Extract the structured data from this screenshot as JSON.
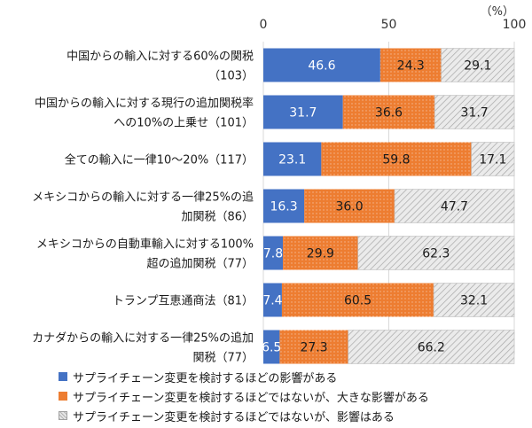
{
  "chart_data": {
    "type": "bar",
    "orientation": "horizontal",
    "stacked": true,
    "unit_label": "（%）",
    "xlim": [
      0,
      100
    ],
    "xticks": [
      "0",
      "50",
      "100"
    ],
    "categories": [
      [
        "中国からの輸入に対する60%の関税",
        "（103）"
      ],
      [
        "中国からの輸入に対する現行の追加関税率",
        "への10%の上乗せ（101）"
      ],
      [
        "全ての輸入に一律10～20%（117）"
      ],
      [
        "メキシコからの輸入に対する一律25%の追",
        "加関税（86）"
      ],
      [
        "メキシコからの自動車輸入に対する100%",
        "超の追加関税（77）"
      ],
      [
        "トランプ互恵通商法（81）"
      ],
      [
        "カナダからの輸入に対する一律25%の追加",
        "関税（77）"
      ]
    ],
    "series": [
      {
        "name": "サプライチェーン変更を検討するほどの影響がある",
        "color": "#4472c4",
        "values": [
          46.6,
          31.7,
          23.1,
          16.3,
          7.8,
          7.4,
          6.5
        ]
      },
      {
        "name": "サプライチェーン変更を検討するほどではないが、大きな影響がある",
        "color": "#ed7d31",
        "values": [
          24.3,
          36.6,
          59.8,
          36.0,
          29.9,
          60.5,
          27.3
        ]
      },
      {
        "name": "サプライチェーン変更を検討するほどではないが、影響はある",
        "color": "#d0d0d0",
        "values": [
          29.1,
          31.7,
          17.1,
          47.7,
          62.3,
          32.1,
          66.2
        ]
      }
    ],
    "labels": [
      [
        "46.6",
        "24.3",
        "29.1"
      ],
      [
        "31.7",
        "36.6",
        "31.7"
      ],
      [
        "23.1",
        "59.8",
        "17.1"
      ],
      [
        "16.3",
        "36.0",
        "47.7"
      ],
      [
        "7.8",
        "29.9",
        "62.3"
      ],
      [
        "7.4",
        "60.5",
        "32.1"
      ],
      [
        "6.5",
        "27.3",
        "66.2"
      ]
    ],
    "grid": true,
    "legend_position": "bottom"
  }
}
